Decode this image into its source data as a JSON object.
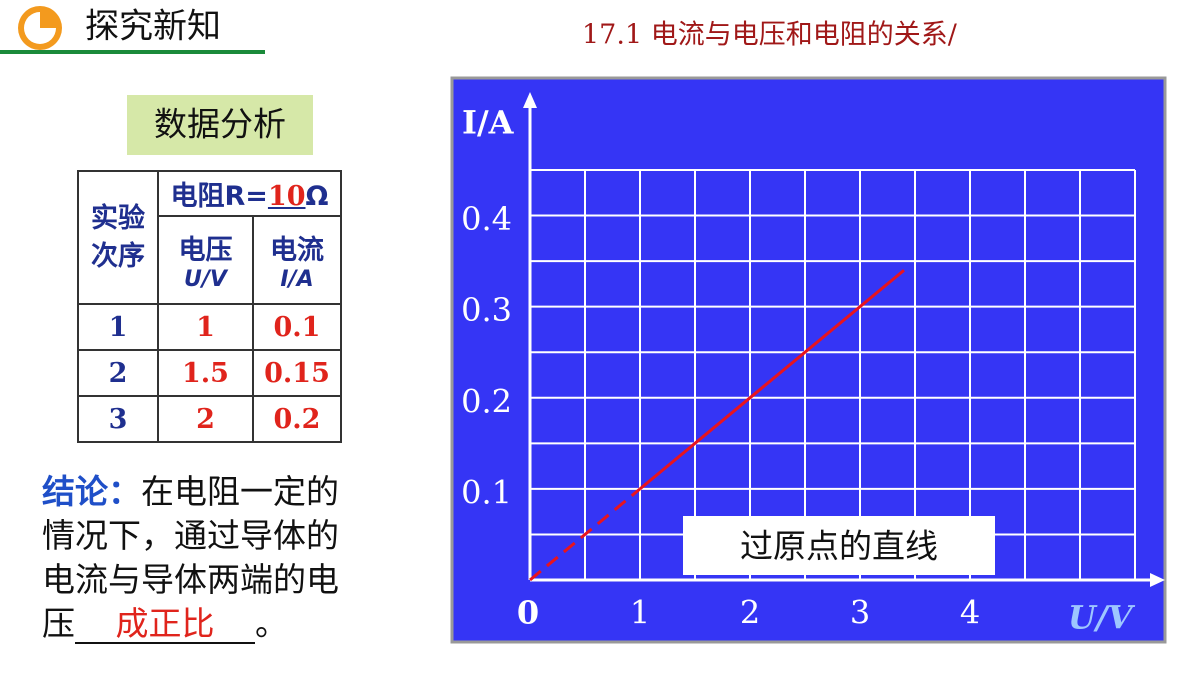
{
  "header": {
    "title": "探究新知",
    "subtitle": "17.1 电流与电压和电阻的关系/"
  },
  "analysis_title": "数据分析",
  "table": {
    "order_header": "实验次序",
    "resistance_label": "电阻R=",
    "resistance_value": "10",
    "resistance_unit": "Ω",
    "voltage_header": "电压",
    "voltage_unit": "U/V",
    "current_header": "电流",
    "current_unit": "I/A",
    "rows": [
      [
        "1",
        "1",
        "0.1"
      ],
      [
        "2",
        "1.5",
        "0.15"
      ],
      [
        "3",
        "2",
        "0.2"
      ]
    ]
  },
  "conclusion": {
    "label": "结论：",
    "lines": [
      "在电阻一定的",
      "情况下，通过导体的",
      "电流与导体两端的电",
      "压"
    ],
    "answer": "成正比",
    "end": "。"
  },
  "chart_data": {
    "type": "line",
    "xlabel": "U/V",
    "ylabel": "I/A",
    "annotation": "过原点的直线",
    "x": [
      0,
      1,
      3.4
    ],
    "values": [
      0,
      0.1,
      0.34
    ],
    "segment_styles": [
      "dashed",
      "solid"
    ],
    "color": "#e8141e",
    "xlim": [
      0,
      5.5
    ],
    "ylim": [
      0,
      0.45
    ],
    "xticks": [
      0,
      1,
      2,
      3,
      4
    ],
    "yticks": [
      0.1,
      0.2,
      0.3,
      0.4
    ],
    "x_gridlines": [
      0.5,
      1,
      1.5,
      2,
      2.5,
      3,
      3.5,
      4,
      4.5,
      5,
      5.5
    ],
    "y_gridlines": [
      0.05,
      0.1,
      0.15,
      0.2,
      0.25,
      0.3,
      0.35,
      0.4,
      0.45
    ]
  }
}
